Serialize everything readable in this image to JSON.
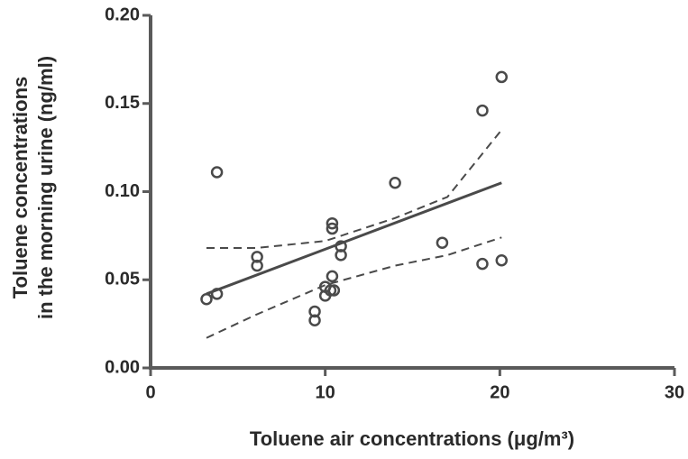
{
  "chart_data": {
    "type": "scatter",
    "x_label": "Toluene air concentrations (μg/m³)",
    "y_label": [
      "Toluene concentrations",
      "in the morning urine (ng/ml)"
    ],
    "xlim": [
      0,
      30
    ],
    "ylim": [
      0,
      0.2
    ],
    "xticks": [
      0,
      10,
      20,
      30
    ],
    "yticks": [
      {
        "value": 0,
        "label": "0.00"
      },
      0.05,
      {
        "value": 0.1,
        "label": "0.10"
      },
      0.15,
      {
        "value": 0.2,
        "label": "0.20"
      }
    ],
    "color": "#4a4a4a",
    "series": [
      {
        "style": "marker",
        "x": [
          3.2,
          3.8,
          3.8,
          6.1,
          6.1,
          9.4,
          9.4,
          10.0,
          10.0,
          10.3,
          10.4,
          10.4,
          10.4,
          10.5,
          10.9,
          10.9,
          14.0,
          16.7,
          19.0,
          20.1,
          19.0,
          20.1
        ],
        "values": [
          0.039,
          0.042,
          0.111,
          0.063,
          0.058,
          0.032,
          0.027,
          0.046,
          0.041,
          0.044,
          0.082,
          0.079,
          0.052,
          0.044,
          0.069,
          0.064,
          0.105,
          0.071,
          0.146,
          0.165,
          0.059,
          0.061
        ]
      },
      {
        "style": "solid",
        "x": [
          3.2,
          20.1
        ],
        "values": [
          0.042,
          0.105
        ]
      },
      {
        "style": "dashed",
        "x": [
          3.2,
          6,
          10,
          14,
          17,
          20.1
        ],
        "values": [
          0.068,
          0.068,
          0.072,
          0.085,
          0.097,
          0.135
        ]
      },
      {
        "style": "dashed",
        "x": [
          3.2,
          6,
          10,
          14,
          17,
          20.1
        ],
        "values": [
          0.017,
          0.03,
          0.047,
          0.058,
          0.064,
          0.074
        ]
      }
    ]
  }
}
